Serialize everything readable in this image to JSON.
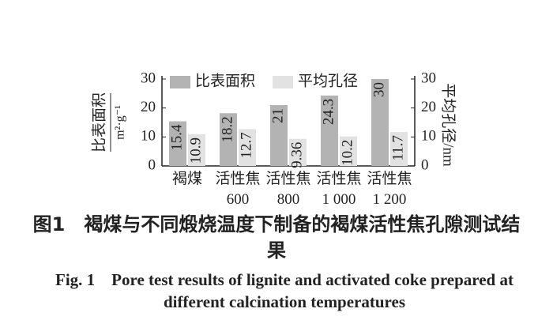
{
  "chart_data": {
    "type": "bar",
    "y_label": "比表面积",
    "y_unit": "m²·g⁻¹",
    "y2_label": "平均孔径/nm",
    "categories": [
      "褐煤",
      "活性焦\n600",
      "活性焦\n800",
      "活性焦\n1 000",
      "活性焦\n1 200"
    ],
    "series": [
      {
        "name": "比表面积",
        "color": "#b3b3b3",
        "values": [
          15.4,
          18.2,
          21,
          24.3,
          30
        ]
      },
      {
        "name": "平均孔径",
        "color": "#e2e2e2",
        "axis": "y2",
        "values": [
          10.9,
          12.7,
          9.36,
          10.2,
          11.7
        ]
      }
    ],
    "ylim": [
      0,
      30
    ],
    "yticks": [
      0,
      10,
      20,
      30
    ],
    "y2lim": [
      0,
      30
    ],
    "y2ticks": [
      0,
      10,
      20,
      30
    ],
    "legend": "top",
    "caption_cn_label": "图1",
    "caption_cn": "褐煤与不同煅烧温度下制备的褐煤活性焦孔隙测试结果",
    "caption_en_label": "Fig. 1",
    "caption_en": "Pore test results of lignite and activated coke prepared at different calcination temperatures"
  }
}
